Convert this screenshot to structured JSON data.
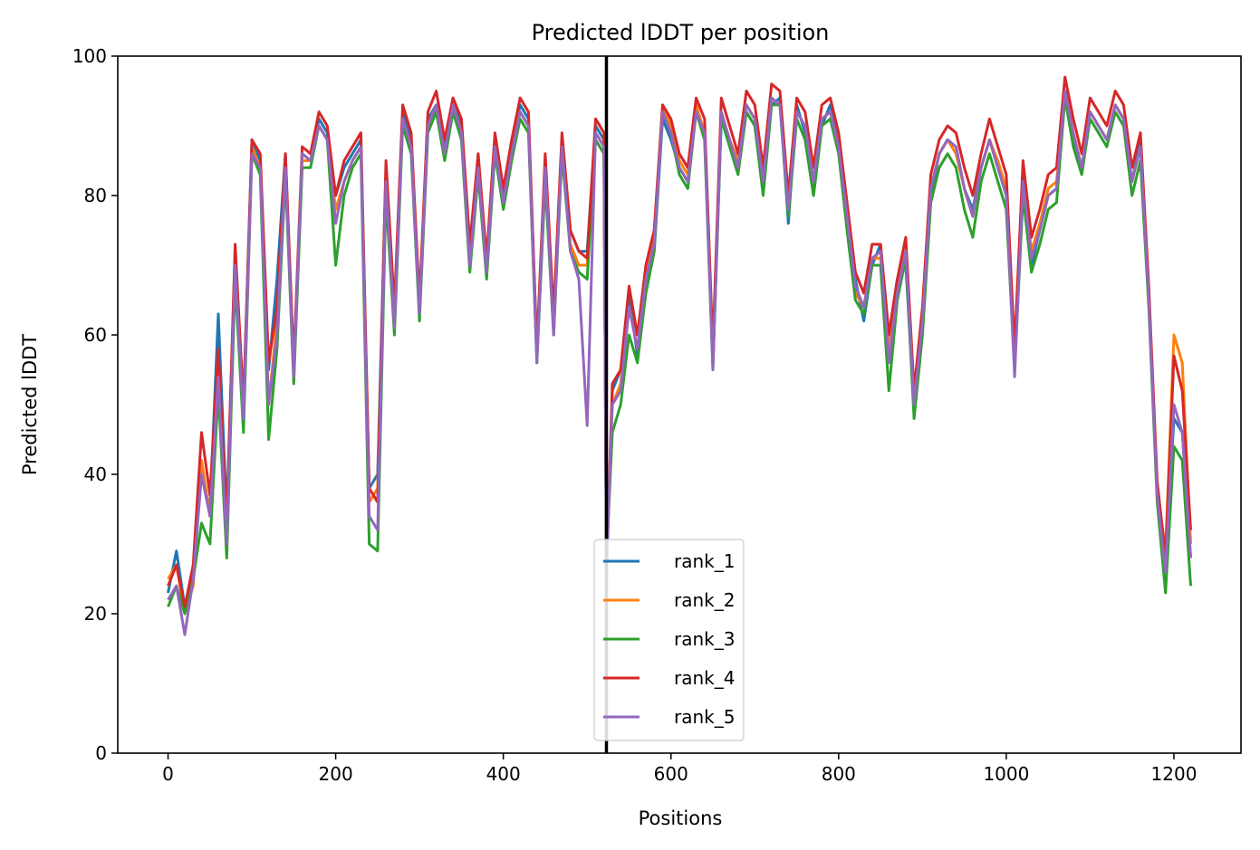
{
  "chart_data": {
    "type": "line",
    "title": "Predicted lDDT per position",
    "xlabel": "Positions",
    "ylabel": "Predicted lDDT",
    "xlim": [
      -60,
      1280
    ],
    "ylim": [
      0,
      100
    ],
    "xticks": [
      0,
      200,
      400,
      600,
      800,
      1000,
      1200
    ],
    "yticks": [
      0,
      20,
      40,
      60,
      80,
      100
    ],
    "grid": false,
    "legend_position": "lower-center",
    "vertical_line": {
      "x": 523,
      "color": "#000000"
    },
    "colors": {
      "rank_1": "#1f77b4",
      "rank_2": "#ff7f0e",
      "rank_3": "#2ca02c",
      "rank_4": "#d62728",
      "rank_5": "#9467bd"
    },
    "x": [
      0,
      10,
      20,
      30,
      40,
      50,
      60,
      70,
      80,
      90,
      100,
      110,
      120,
      130,
      140,
      150,
      160,
      170,
      180,
      190,
      200,
      210,
      220,
      230,
      240,
      250,
      260,
      270,
      280,
      290,
      300,
      310,
      320,
      330,
      340,
      350,
      360,
      370,
      380,
      390,
      400,
      410,
      420,
      430,
      440,
      450,
      460,
      470,
      480,
      490,
      500,
      510,
      520,
      523,
      530,
      540,
      550,
      560,
      570,
      580,
      590,
      600,
      610,
      620,
      630,
      640,
      650,
      660,
      670,
      680,
      690,
      700,
      710,
      720,
      730,
      740,
      750,
      760,
      770,
      780,
      790,
      800,
      810,
      820,
      830,
      840,
      850,
      860,
      870,
      880,
      890,
      900,
      910,
      920,
      930,
      940,
      950,
      960,
      970,
      980,
      990,
      1000,
      1010,
      1020,
      1030,
      1040,
      1050,
      1060,
      1070,
      1080,
      1090,
      1100,
      1110,
      1120,
      1130,
      1140,
      1150,
      1160,
      1170,
      1180,
      1190,
      1200,
      1210,
      1220
    ],
    "series": [
      {
        "name": "rank_1",
        "values": [
          23,
          29,
          21,
          26,
          40,
          35,
          63,
          34,
          72,
          50,
          88,
          85,
          55,
          68,
          86,
          55,
          86,
          85,
          91,
          89,
          80,
          84,
          86,
          88,
          38,
          40,
          84,
          62,
          92,
          88,
          64,
          91,
          93,
          87,
          93,
          90,
          72,
          85,
          70,
          88,
          80,
          87,
          93,
          91,
          58,
          84,
          62,
          88,
          75,
          72,
          72,
          90,
          88,
          25,
          52,
          55,
          66,
          57,
          66,
          72,
          91,
          88,
          84,
          82,
          92,
          89,
          56,
          91,
          88,
          84,
          92,
          90,
          81,
          93,
          94,
          76,
          93,
          89,
          80,
          90,
          93,
          88,
          78,
          68,
          62,
          70,
          73,
          60,
          68,
          70,
          50,
          62,
          80,
          86,
          88,
          87,
          81,
          78,
          84,
          88,
          84,
          80,
          56,
          82,
          70,
          75,
          80,
          81,
          94,
          88,
          84,
          92,
          90,
          88,
          93,
          91,
          82,
          88,
          66,
          38,
          27,
          48,
          46,
          28
        ]
      },
      {
        "name": "rank_2",
        "values": [
          25,
          27,
          20,
          24,
          42,
          34,
          55,
          33,
          70,
          48,
          87,
          84,
          50,
          62,
          84,
          54,
          85,
          85,
          90,
          88,
          78,
          82,
          85,
          87,
          36,
          38,
          82,
          61,
          91,
          87,
          63,
          90,
          93,
          86,
          93,
          89,
          70,
          84,
          69,
          87,
          79,
          86,
          92,
          90,
          57,
          83,
          61,
          87,
          73,
          70,
          70,
          89,
          87,
          30,
          50,
          53,
          64,
          58,
          68,
          74,
          93,
          90,
          85,
          83,
          93,
          89,
          57,
          92,
          88,
          85,
          93,
          91,
          82,
          94,
          93,
          78,
          92,
          90,
          82,
          91,
          92,
          87,
          76,
          66,
          64,
          71,
          71,
          58,
          66,
          72,
          52,
          63,
          81,
          86,
          88,
          86,
          81,
          77,
          84,
          88,
          85,
          81,
          58,
          83,
          72,
          76,
          81,
          82,
          95,
          89,
          84,
          92,
          90,
          88,
          93,
          91,
          82,
          87,
          65,
          38,
          29,
          60,
          56,
          30
        ]
      },
      {
        "name": "rank_3",
        "values": [
          21,
          24,
          20,
          25,
          33,
          30,
          52,
          28,
          68,
          46,
          86,
          83,
          45,
          58,
          83,
          53,
          84,
          84,
          90,
          88,
          70,
          80,
          84,
          86,
          30,
          29,
          80,
          60,
          90,
          86,
          62,
          89,
          92,
          85,
          92,
          88,
          69,
          83,
          68,
          86,
          78,
          85,
          91,
          89,
          56,
          82,
          60,
          86,
          72,
          69,
          68,
          88,
          86,
          28,
          46,
          50,
          60,
          56,
          66,
          72,
          92,
          89,
          83,
          81,
          92,
          88,
          55,
          91,
          87,
          83,
          92,
          90,
          80,
          93,
          93,
          77,
          91,
          88,
          80,
          90,
          91,
          86,
          75,
          65,
          63,
          70,
          70,
          52,
          65,
          71,
          48,
          60,
          79,
          84,
          86,
          84,
          78,
          74,
          82,
          86,
          82,
          78,
          55,
          80,
          69,
          73,
          78,
          79,
          94,
          87,
          83,
          91,
          89,
          87,
          92,
          90,
          80,
          85,
          64,
          36,
          23,
          44,
          42,
          24
        ]
      },
      {
        "name": "rank_4",
        "values": [
          24,
          27,
          21,
          27,
          46,
          37,
          58,
          33,
          73,
          50,
          88,
          86,
          56,
          64,
          86,
          56,
          87,
          86,
          92,
          90,
          80,
          85,
          87,
          89,
          38,
          36,
          85,
          64,
          93,
          89,
          65,
          92,
          95,
          88,
          94,
          91,
          73,
          86,
          71,
          89,
          81,
          88,
          94,
          92,
          58,
          86,
          63,
          89,
          75,
          72,
          71,
          91,
          89,
          26,
          53,
          55,
          67,
          60,
          70,
          75,
          93,
          91,
          86,
          84,
          94,
          91,
          58,
          94,
          90,
          86,
          95,
          93,
          84,
          96,
          95,
          80,
          94,
          92,
          84,
          93,
          94,
          89,
          79,
          69,
          66,
          73,
          73,
          60,
          68,
          74,
          52,
          64,
          83,
          88,
          90,
          89,
          84,
          80,
          86,
          91,
          87,
          83,
          58,
          85,
          74,
          78,
          83,
          84,
          97,
          91,
          86,
          94,
          92,
          90,
          95,
          93,
          84,
          89,
          67,
          39,
          28,
          57,
          52,
          32
        ]
      },
      {
        "name": "rank_5",
        "values": [
          22,
          24,
          17,
          25,
          40,
          34,
          54,
          30,
          70,
          48,
          86,
          84,
          50,
          60,
          84,
          54,
          86,
          85,
          90,
          88,
          76,
          82,
          85,
          87,
          34,
          32,
          82,
          61,
          91,
          87,
          63,
          90,
          93,
          86,
          93,
          89,
          70,
          84,
          69,
          87,
          79,
          86,
          92,
          90,
          56,
          84,
          60,
          87,
          72,
          68,
          47,
          89,
          87,
          27,
          50,
          52,
          64,
          58,
          68,
          73,
          92,
          89,
          84,
          82,
          92,
          89,
          55,
          92,
          88,
          84,
          93,
          91,
          82,
          94,
          93,
          78,
          92,
          90,
          82,
          91,
          92,
          87,
          77,
          67,
          64,
          71,
          72,
          56,
          66,
          72,
          50,
          62,
          81,
          86,
          88,
          87,
          81,
          77,
          84,
          88,
          84,
          80,
          54,
          82,
          71,
          75,
          80,
          81,
          95,
          89,
          84,
          92,
          90,
          88,
          93,
          91,
          82,
          87,
          65,
          37,
          26,
          50,
          46,
          28
        ]
      }
    ]
  }
}
